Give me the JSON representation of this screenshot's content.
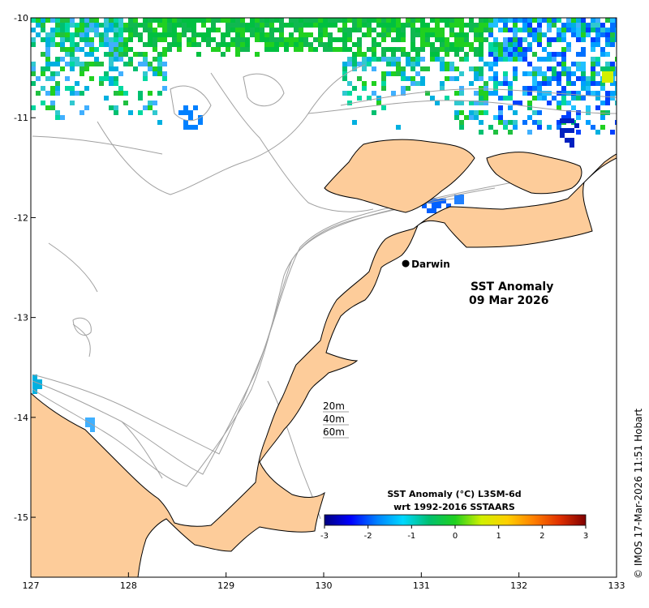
{
  "map": {
    "title_line1": "SST Anomaly",
    "title_line2": "09 Mar 2026",
    "place": "Darwin",
    "place_lon": 130.84,
    "place_lat": -12.46,
    "lon_range": [
      127,
      133
    ],
    "lat_range": [
      -15.6,
      -10
    ],
    "lon_ticks": [
      "127",
      "128",
      "129",
      "130",
      "131",
      "132",
      "133"
    ],
    "lat_ticks": [
      "-10",
      "-11",
      "-12",
      "-13",
      "-14",
      "-15"
    ],
    "contours": [
      "20m",
      "40m",
      "60m"
    ],
    "land_color": "#fdcc9a",
    "water_color": "#ffffff",
    "contour_color": "#a0a0a0"
  },
  "colorbar": {
    "title_line1": "SST Anomaly (°C) L3SM-6d",
    "title_line2": "wrt 1992-2016 SSTAARS",
    "ticks": [
      "-3",
      "-2",
      "-1",
      "0",
      "1",
      "2",
      "3"
    ],
    "range": [
      -3,
      3
    ],
    "colors": [
      "#00007f",
      "#0000ff",
      "#0080ff",
      "#00d8ff",
      "#00c070",
      "#20d020",
      "#d0f000",
      "#ffd000",
      "#ff8000",
      "#e03000",
      "#800000"
    ]
  },
  "credit": "© IMOS 17-Mar-2026 11:51 Hobart"
}
